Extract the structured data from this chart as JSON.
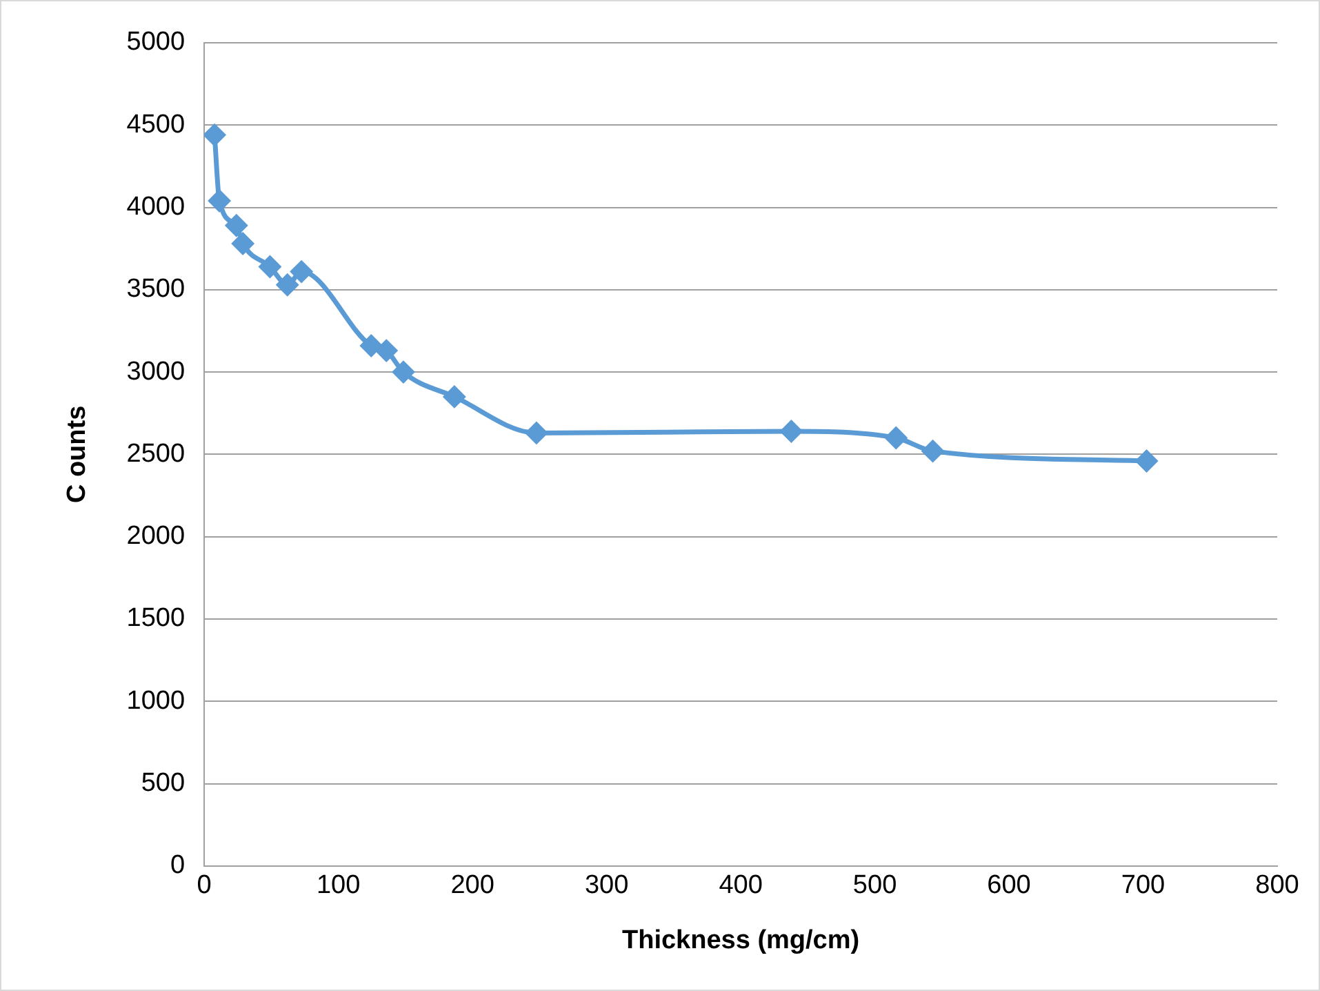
{
  "chart_data": {
    "type": "line",
    "xlabel": "Thickness (mg/cm)",
    "ylabel": "C ounts",
    "x": [
      7.7,
      11.3,
      24,
      28.8,
      49,
      62,
      72.5,
      124.5,
      135.8,
      148.5,
      186.5,
      247.7,
      437.7,
      515.8,
      543.2,
      702.6
    ],
    "series": [
      {
        "color": "#5b9bd5",
        "values": [
          4440,
          4040,
          3890,
          3780,
          3640,
          3530,
          3610,
          3160,
          3130,
          3000,
          2850,
          2630,
          2640,
          2600,
          2520,
          2460
        ]
      }
    ],
    "xlim": [
      0,
      800
    ],
    "xticks": [
      0,
      100,
      200,
      300,
      400,
      500,
      600,
      700,
      800
    ],
    "ylim": [
      0,
      5000
    ],
    "yticks": [
      0,
      500,
      1000,
      1500,
      2000,
      2500,
      3000,
      3500,
      4000,
      4500,
      5000
    ],
    "grid": "y",
    "marker": "diamond",
    "line_style": "solid",
    "legend": false
  }
}
